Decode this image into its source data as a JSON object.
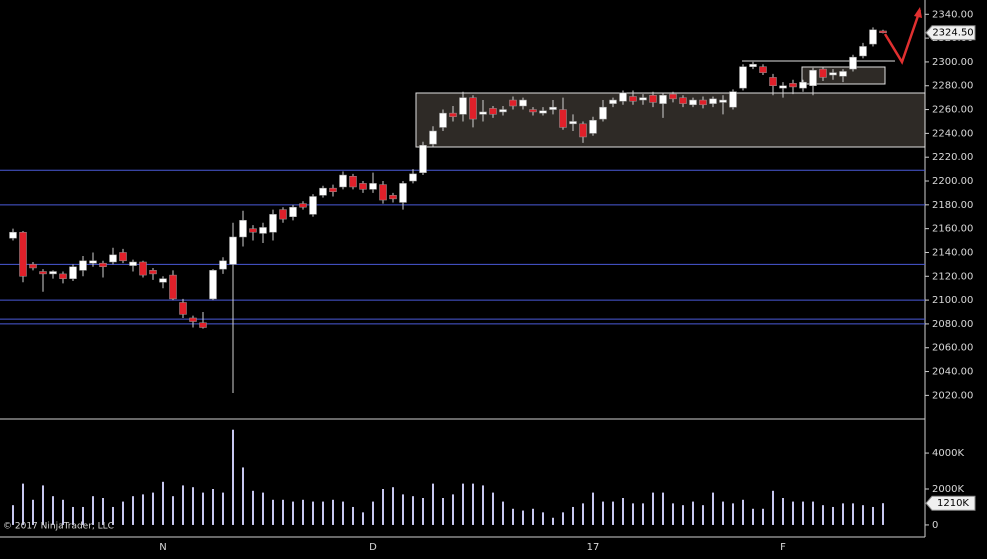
{
  "chart_data": [
    {
      "type": "candlestick",
      "categories": [
        null,
        null,
        null,
        null,
        null,
        null,
        null,
        null,
        null,
        null,
        null,
        null,
        null,
        null,
        null,
        "N",
        null,
        null,
        null,
        null,
        null,
        null,
        null,
        null,
        null,
        null,
        null,
        null,
        null,
        null,
        null,
        null,
        null,
        null,
        null,
        null,
        "D",
        null,
        null,
        null,
        null,
        null,
        null,
        null,
        null,
        null,
        null,
        null,
        null,
        null,
        null,
        null,
        null,
        null,
        null,
        null,
        null,
        null,
        "17",
        null,
        null,
        null,
        null,
        null,
        null,
        null,
        null,
        null,
        null,
        null,
        null,
        null,
        null,
        null,
        null,
        null,
        null,
        "F",
        null,
        null,
        null,
        null,
        null,
        null,
        null,
        null,
        null,
        null
      ],
      "open": [
        2152,
        2157,
        2130,
        2124,
        2122,
        2122,
        2118,
        2125,
        2131,
        2131,
        2132,
        2140,
        2129,
        2132,
        2125,
        2115,
        2121,
        2098,
        2085,
        2081,
        2101,
        2126,
        2130,
        2153,
        2160,
        2156,
        2157,
        2176,
        2170,
        2181,
        2172,
        2188,
        2194,
        2195,
        2204,
        2198,
        2193,
        2197,
        2188,
        2182,
        2200,
        2207,
        2231,
        2245,
        2257,
        2256,
        2270,
        2256,
        2261,
        2258,
        2268,
        2263,
        2260,
        2257,
        2260,
        2260,
        2248,
        2248,
        2240,
        2252,
        2265,
        2267,
        2271,
        2268,
        2272,
        2265,
        2273,
        2270,
        2264,
        2268,
        2265,
        2266,
        2262,
        2278,
        2296,
        2296,
        2287,
        2278,
        2282,
        2278,
        2280,
        2294,
        2289,
        2288,
        2294,
        2305,
        2315,
        2326
      ],
      "high": [
        2160,
        2158,
        2132,
        2126,
        2125,
        2124,
        2130,
        2137,
        2140,
        2133,
        2144,
        2143,
        2134,
        2133,
        2127,
        2120,
        2125,
        2101,
        2087,
        2090,
        2126,
        2136,
        2165,
        2175,
        2163,
        2165,
        2176,
        2178,
        2180,
        2183,
        2189,
        2196,
        2197,
        2208,
        2206,
        2200,
        2207,
        2200,
        2190,
        2200,
        2210,
        2233,
        2246,
        2260,
        2263,
        2275,
        2272,
        2268,
        2263,
        2263,
        2271,
        2270,
        2262,
        2262,
        2268,
        2270,
        2256,
        2250,
        2254,
        2268,
        2270,
        2276,
        2276,
        2273,
        2275,
        2274,
        2275,
        2272,
        2270,
        2271,
        2271,
        2272,
        2277,
        2298,
        2300,
        2298,
        2290,
        2283,
        2285,
        2285,
        2295,
        2296,
        2294,
        2294,
        2306,
        2316,
        2329,
        2327
      ],
      "low": [
        2150,
        2115,
        2125,
        2107,
        2118,
        2114,
        2116,
        2120,
        2128,
        2119,
        2130,
        2131,
        2124,
        2119,
        2117,
        2110,
        2100,
        2085,
        2077,
        2076,
        2100,
        2122,
        2022,
        2145,
        2150,
        2148,
        2150,
        2165,
        2167,
        2176,
        2170,
        2186,
        2187,
        2193,
        2193,
        2190,
        2190,
        2181,
        2182,
        2176,
        2198,
        2205,
        2229,
        2242,
        2250,
        2250,
        2245,
        2250,
        2253,
        2255,
        2260,
        2260,
        2255,
        2255,
        2256,
        2243,
        2242,
        2232,
        2238,
        2250,
        2262,
        2264,
        2264,
        2264,
        2262,
        2253,
        2266,
        2262,
        2262,
        2261,
        2262,
        2256,
        2260,
        2276,
        2294,
        2289,
        2272,
        2270,
        2273,
        2275,
        2272,
        2284,
        2285,
        2283,
        2292,
        2303,
        2313,
        2324
      ],
      "close": [
        2157,
        2120,
        2127,
        2122,
        2124,
        2118,
        2128,
        2133,
        2133,
        2128,
        2138,
        2133,
        2132,
        2121,
        2122,
        2118,
        2101,
        2088,
        2082,
        2077,
        2125,
        2133,
        2153,
        2167,
        2157,
        2161,
        2172,
        2168,
        2178,
        2178,
        2187,
        2194,
        2191,
        2205,
        2195,
        2193,
        2198,
        2184,
        2185,
        2198,
        2206,
        2230,
        2242,
        2257,
        2254,
        2270,
        2252,
        2258,
        2256,
        2260,
        2263,
        2268,
        2258,
        2259,
        2262,
        2245,
        2250,
        2237,
        2251,
        2262,
        2268,
        2274,
        2267,
        2270,
        2266,
        2272,
        2269,
        2265,
        2268,
        2264,
        2269,
        2268,
        2275,
        2296,
        2298,
        2291,
        2280,
        2280,
        2279,
        2283,
        2293,
        2287,
        2291,
        2292,
        2304,
        2313,
        2327,
        2324.5
      ],
      "up_color": "#ffffff",
      "down_color": "#e0202a",
      "levels": [
        2209,
        2180,
        2130,
        2100,
        2084,
        2080
      ],
      "level_color": "#4a5ad8",
      "ylim": [
        2001,
        2352
      ],
      "yticks": [
        {
          "value": 2020,
          "label": "2020.00"
        },
        {
          "value": 2040,
          "label": "2040.00"
        },
        {
          "value": 2060,
          "label": "2060.00"
        },
        {
          "value": 2080,
          "label": "2080.00"
        },
        {
          "value": 2100,
          "label": "2100.00"
        },
        {
          "value": 2120,
          "label": "2120.00"
        },
        {
          "value": 2140,
          "label": "2140.00"
        },
        {
          "value": 2160,
          "label": "2160.00"
        },
        {
          "value": 2180,
          "label": "2180.00"
        },
        {
          "value": 2200,
          "label": "2200.00"
        },
        {
          "value": 2220,
          "label": "2220.00"
        },
        {
          "value": 2240,
          "label": "2240.00"
        },
        {
          "value": 2260,
          "label": "2260.00"
        },
        {
          "value": 2280,
          "label": "2280.00"
        },
        {
          "value": 2300,
          "label": "2300.00"
        },
        {
          "value": 2320,
          "label": "2320.00"
        },
        {
          "value": 2340,
          "label": "2340.00"
        }
      ],
      "last_tag": {
        "value": 2324.5,
        "label": "2324.50"
      }
    },
    {
      "type": "bar",
      "values": [
        1100,
        2300,
        1400,
        2200,
        1600,
        1400,
        1000,
        1000,
        1600,
        1500,
        1000,
        1300,
        1600,
        1700,
        1800,
        2400,
        1600,
        2200,
        2100,
        1800,
        2000,
        1800,
        5300,
        3200,
        1900,
        1800,
        1400,
        1400,
        1300,
        1400,
        1300,
        1300,
        1400,
        1300,
        1000,
        700,
        1300,
        2000,
        2100,
        1700,
        1600,
        1500,
        2300,
        1500,
        1700,
        2300,
        2300,
        2200,
        1800,
        1300,
        900,
        800,
        900,
        700,
        400,
        700,
        1000,
        1200,
        1800,
        1300,
        1300,
        1500,
        1200,
        1200,
        1800,
        1800,
        1200,
        1100,
        1300,
        1100,
        1800,
        1300,
        1200,
        1400,
        900,
        900,
        1900,
        1500,
        1300,
        1300,
        1300,
        1100,
        1000,
        1200,
        1200,
        1100,
        1000,
        1210
      ],
      "color": "#c8c8f0",
      "ylim": [
        -560,
        5840
      ],
      "yticks": [
        0,
        {
          "value": 2000,
          "label": "2000K"
        },
        {
          "value": 4000,
          "label": "4000K"
        }
      ],
      "last_tag": {
        "value": 1210,
        "label": "1210K"
      },
      "annotation": "© 2017 NinjaTrader, LLC"
    }
  ]
}
